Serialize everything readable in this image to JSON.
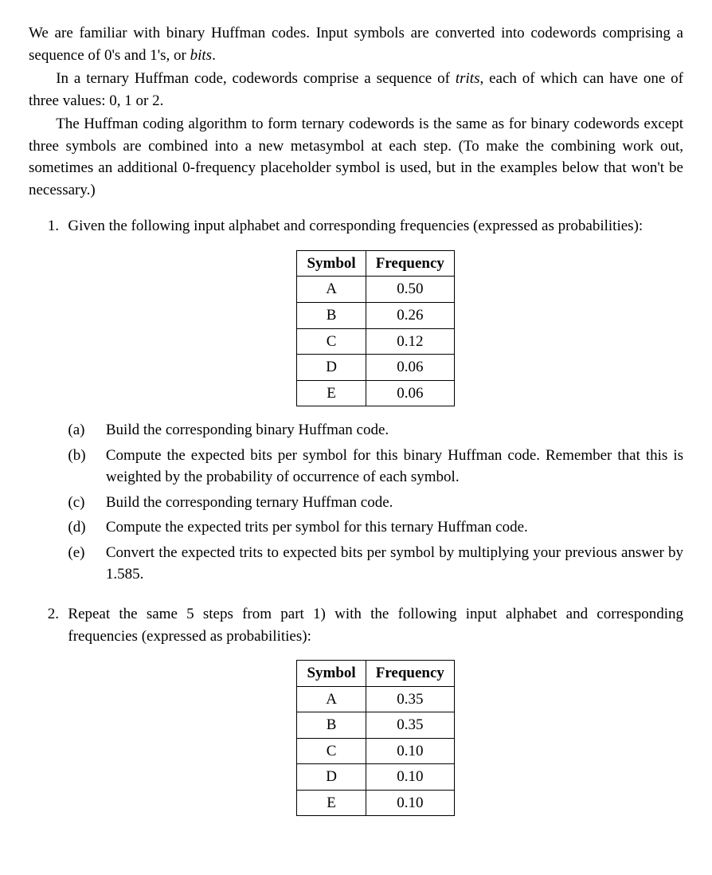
{
  "intro": {
    "p1": "We are familiar with binary Huffman codes. Input symbols are converted into codewords comprising a sequence of 0's and 1's, or ",
    "p1_italic": "bits",
    "p1_end": ".",
    "p2_a": "In a ternary Huffman code, codewords comprise a sequence of ",
    "p2_italic": "trits",
    "p2_b": ", each of which can have one of three values: 0, 1 or 2.",
    "p3": "The Huffman coding algorithm to form ternary codewords is the same as for binary codewords except three symbols are combined into a new metasymbol at each step. (To make the combining work out, sometimes an additional 0-frequency placeholder symbol is used, but in the examples below that won't be necessary.)"
  },
  "q1": {
    "marker": "1.",
    "lead": "Given the following input alphabet and corresponding frequencies (expressed as probabilities):",
    "table": {
      "h1": "Symbol",
      "h2": "Frequency",
      "rows": [
        {
          "s": "A",
          "f": "0.50"
        },
        {
          "s": "B",
          "f": "0.26"
        },
        {
          "s": "C",
          "f": "0.12"
        },
        {
          "s": "D",
          "f": "0.06"
        },
        {
          "s": "E",
          "f": "0.06"
        }
      ]
    },
    "parts": {
      "a_m": "(a)",
      "a": "Build the corresponding binary Huffman code.",
      "b_m": "(b)",
      "b": "Compute the expected bits per symbol for this binary Huffman code. Remember that this is weighted by the probability of occurrence of each symbol.",
      "c_m": "(c)",
      "c": "Build the corresponding ternary Huffman code.",
      "d_m": "(d)",
      "d": "Compute the expected trits per symbol for this ternary Huffman code.",
      "e_m": "(e)",
      "e": "Convert the expected trits to expected bits per symbol by multiplying your previous answer by 1.585."
    }
  },
  "q2": {
    "marker": "2.",
    "lead": "Repeat the same 5 steps from part 1) with the following input alphabet and corresponding frequencies (expressed as probabilities):",
    "table": {
      "h1": "Symbol",
      "h2": "Frequency",
      "rows": [
        {
          "s": "A",
          "f": "0.35"
        },
        {
          "s": "B",
          "f": "0.35"
        },
        {
          "s": "C",
          "f": "0.10"
        },
        {
          "s": "D",
          "f": "0.10"
        },
        {
          "s": "E",
          "f": "0.10"
        }
      ]
    }
  },
  "style": {
    "font_family": "Times New Roman / Computer Modern",
    "body_fontsize_pt": 14,
    "text_color": "#000000",
    "background_color": "#ffffff",
    "table_border_color": "#000000"
  }
}
